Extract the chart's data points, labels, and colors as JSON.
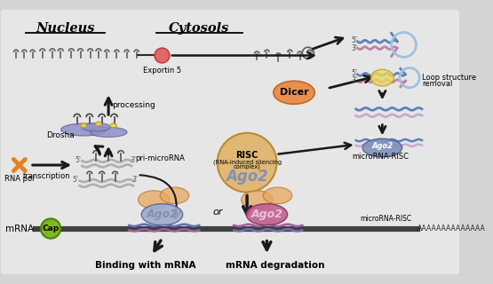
{
  "bg_color": "#d4d4d4",
  "panel_color": "#e6e6e6",
  "nucleus_label": "Nucleus",
  "cytosols_label": "Cytosols",
  "exportin5": "Exportin 5",
  "processing": "processing",
  "drosha": "Drosha",
  "rnapol": "RNA pol",
  "transcription": "transcription",
  "pri_microrna": "pri-microRNA",
  "dicer": "Dicer",
  "risc_line1": "RISC",
  "risc_line2": "(RNA-induced silencing",
  "risc_line3": "complex)",
  "ago2": "Ago2",
  "loop_removal_1": "Loop structure",
  "loop_removal_2": "removal",
  "microrna_risc": "microRNA-RISC",
  "mrna": "mRNA",
  "cap": "Cap",
  "or_label": "or",
  "binding": "Binding with mRNA",
  "degradation": "mRNA degradation",
  "poly_a": "AAAAAAAAAAAAAA",
  "colors": {
    "black": "#1a1a1a",
    "dark": "#2a2a2a",
    "drosha_purple": "#8080c0",
    "drosha_blue_blob": "#9090c8",
    "ago2_blue_main": "#8090b8",
    "ago2_blue_light": "#a0aac8",
    "ago2_purple": "#c06090",
    "ago2_orange_blob": "#e8a860",
    "cap_green": "#80b820",
    "dicer_orange": "#e89050",
    "risc_gold": "#e0b060",
    "mrna_line": "#404040",
    "exportin_red": "#e06868",
    "loop_blue": "#8ab0d0",
    "loop_circle_color": "#a0c0e0",
    "helix_blue": "#6080b8",
    "helix_pink": "#c080a8",
    "helix_lavender": "#c8a8d0",
    "yellow_spot": "#e8d860",
    "rna_hairpin": "#686868",
    "arrow_black": "#1a1a1a",
    "curve_line": "#1a1a1a"
  }
}
